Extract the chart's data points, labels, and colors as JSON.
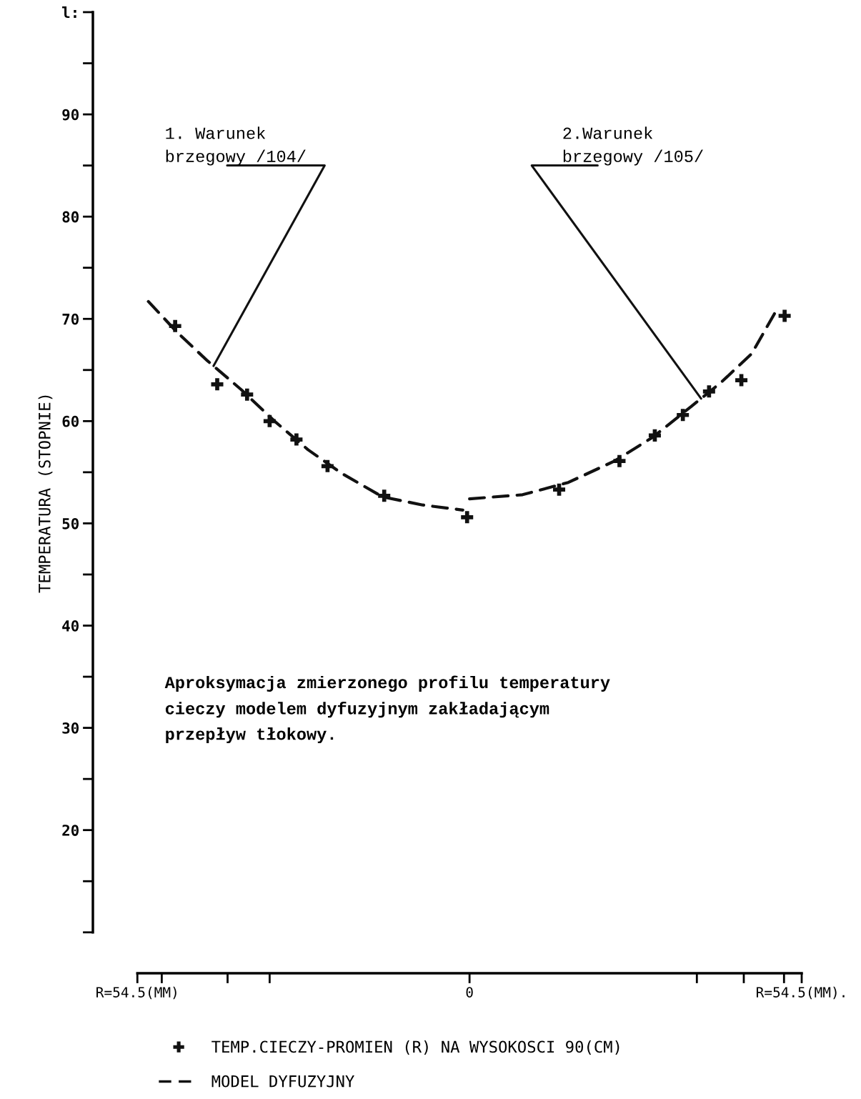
{
  "chart_data": {
    "type": "scatter",
    "ylabel": "TEMPERATURA (STOPNIE)",
    "xlim": [
      -61.8,
      54.5
    ],
    "ylim": [
      6,
      100
    ],
    "xticks": [
      {
        "value": -54.5,
        "label": "R=54.5(MM)"
      },
      {
        "value": -50.5,
        "label": null
      },
      {
        "value": -39.7,
        "label": null
      },
      {
        "value": -32.8,
        "label": null
      },
      0,
      {
        "value": 37.3,
        "label": null
      },
      {
        "value": 45.0,
        "label": null
      },
      {
        "value": 51.6,
        "label": null
      },
      {
        "value": 54.5,
        "label": "R=54.5(MM)."
      }
    ],
    "yticks": [
      {
        "value": 10,
        "label": null
      },
      {
        "value": 15,
        "label": null
      },
      20,
      {
        "value": 25,
        "label": null
      },
      30,
      {
        "value": 35,
        "label": null
      },
      40,
      {
        "value": 45,
        "label": null
      },
      50,
      {
        "value": 55,
        "label": null
      },
      60,
      {
        "value": 65,
        "label": null
      },
      70,
      {
        "value": 75,
        "label": null
      },
      80,
      {
        "value": 85,
        "label": null
      },
      90,
      {
        "value": 95,
        "label": null
      },
      {
        "value": 100,
        "label": "l:"
      }
    ],
    "grid": false,
    "legend": "bottom",
    "series": [
      {
        "name": "TEMP.CIECZY-PROMIEN (R) NA WYSOKOSCI 90(CM)",
        "marker": "cross",
        "color": "#111111",
        "x": [
          -48.3,
          -41.4,
          -36.5,
          -32.8,
          -28.4,
          -23.3,
          -14.0,
          -0.4,
          14.7,
          24.6,
          30.4,
          35.0,
          39.3,
          44.6,
          51.7
        ],
        "values": [
          69.3,
          63.6,
          62.6,
          60.0,
          58.2,
          55.6,
          52.7,
          50.6,
          53.3,
          56.1,
          58.6,
          60.6,
          62.9,
          64.0,
          70.3
        ]
      },
      {
        "name": "MODEL DYFUZYJNY",
        "type": "line",
        "line_style": "dashed",
        "marker": "none",
        "color": "#111111",
        "x": [
          -52.7,
          -48.0,
          -43.0,
          -37.5,
          -32.0,
          -26.5,
          -21.0,
          -14.3,
          -7.7,
          -1.1,
          -0.8,
          0,
          8.7,
          16.2,
          23.8,
          30.0,
          36.3,
          41.3,
          46.3,
          50.6
        ],
        "values": [
          71.7,
          68.7,
          65.9,
          63.1,
          60.0,
          57.2,
          54.9,
          52.6,
          51.8,
          51.3,
          null,
          52.4,
          52.8,
          54.0,
          56.1,
          58.4,
          61.4,
          63.8,
          66.6,
          71.1
        ]
      }
    ],
    "annotations": [
      {
        "text": "1. Warunek\nbrzegowy /104/",
        "x": -42.0,
        "y": 65.4
      },
      {
        "text": "2.Warunek\nbrzegowy /105/",
        "x": 38.0,
        "y": 62.2
      },
      "Aproksymacja zmierzonego profilu temperatury\ncieczy modelem dyfuzyjnym zakładającym\nprzepływ tłokowy."
    ]
  }
}
